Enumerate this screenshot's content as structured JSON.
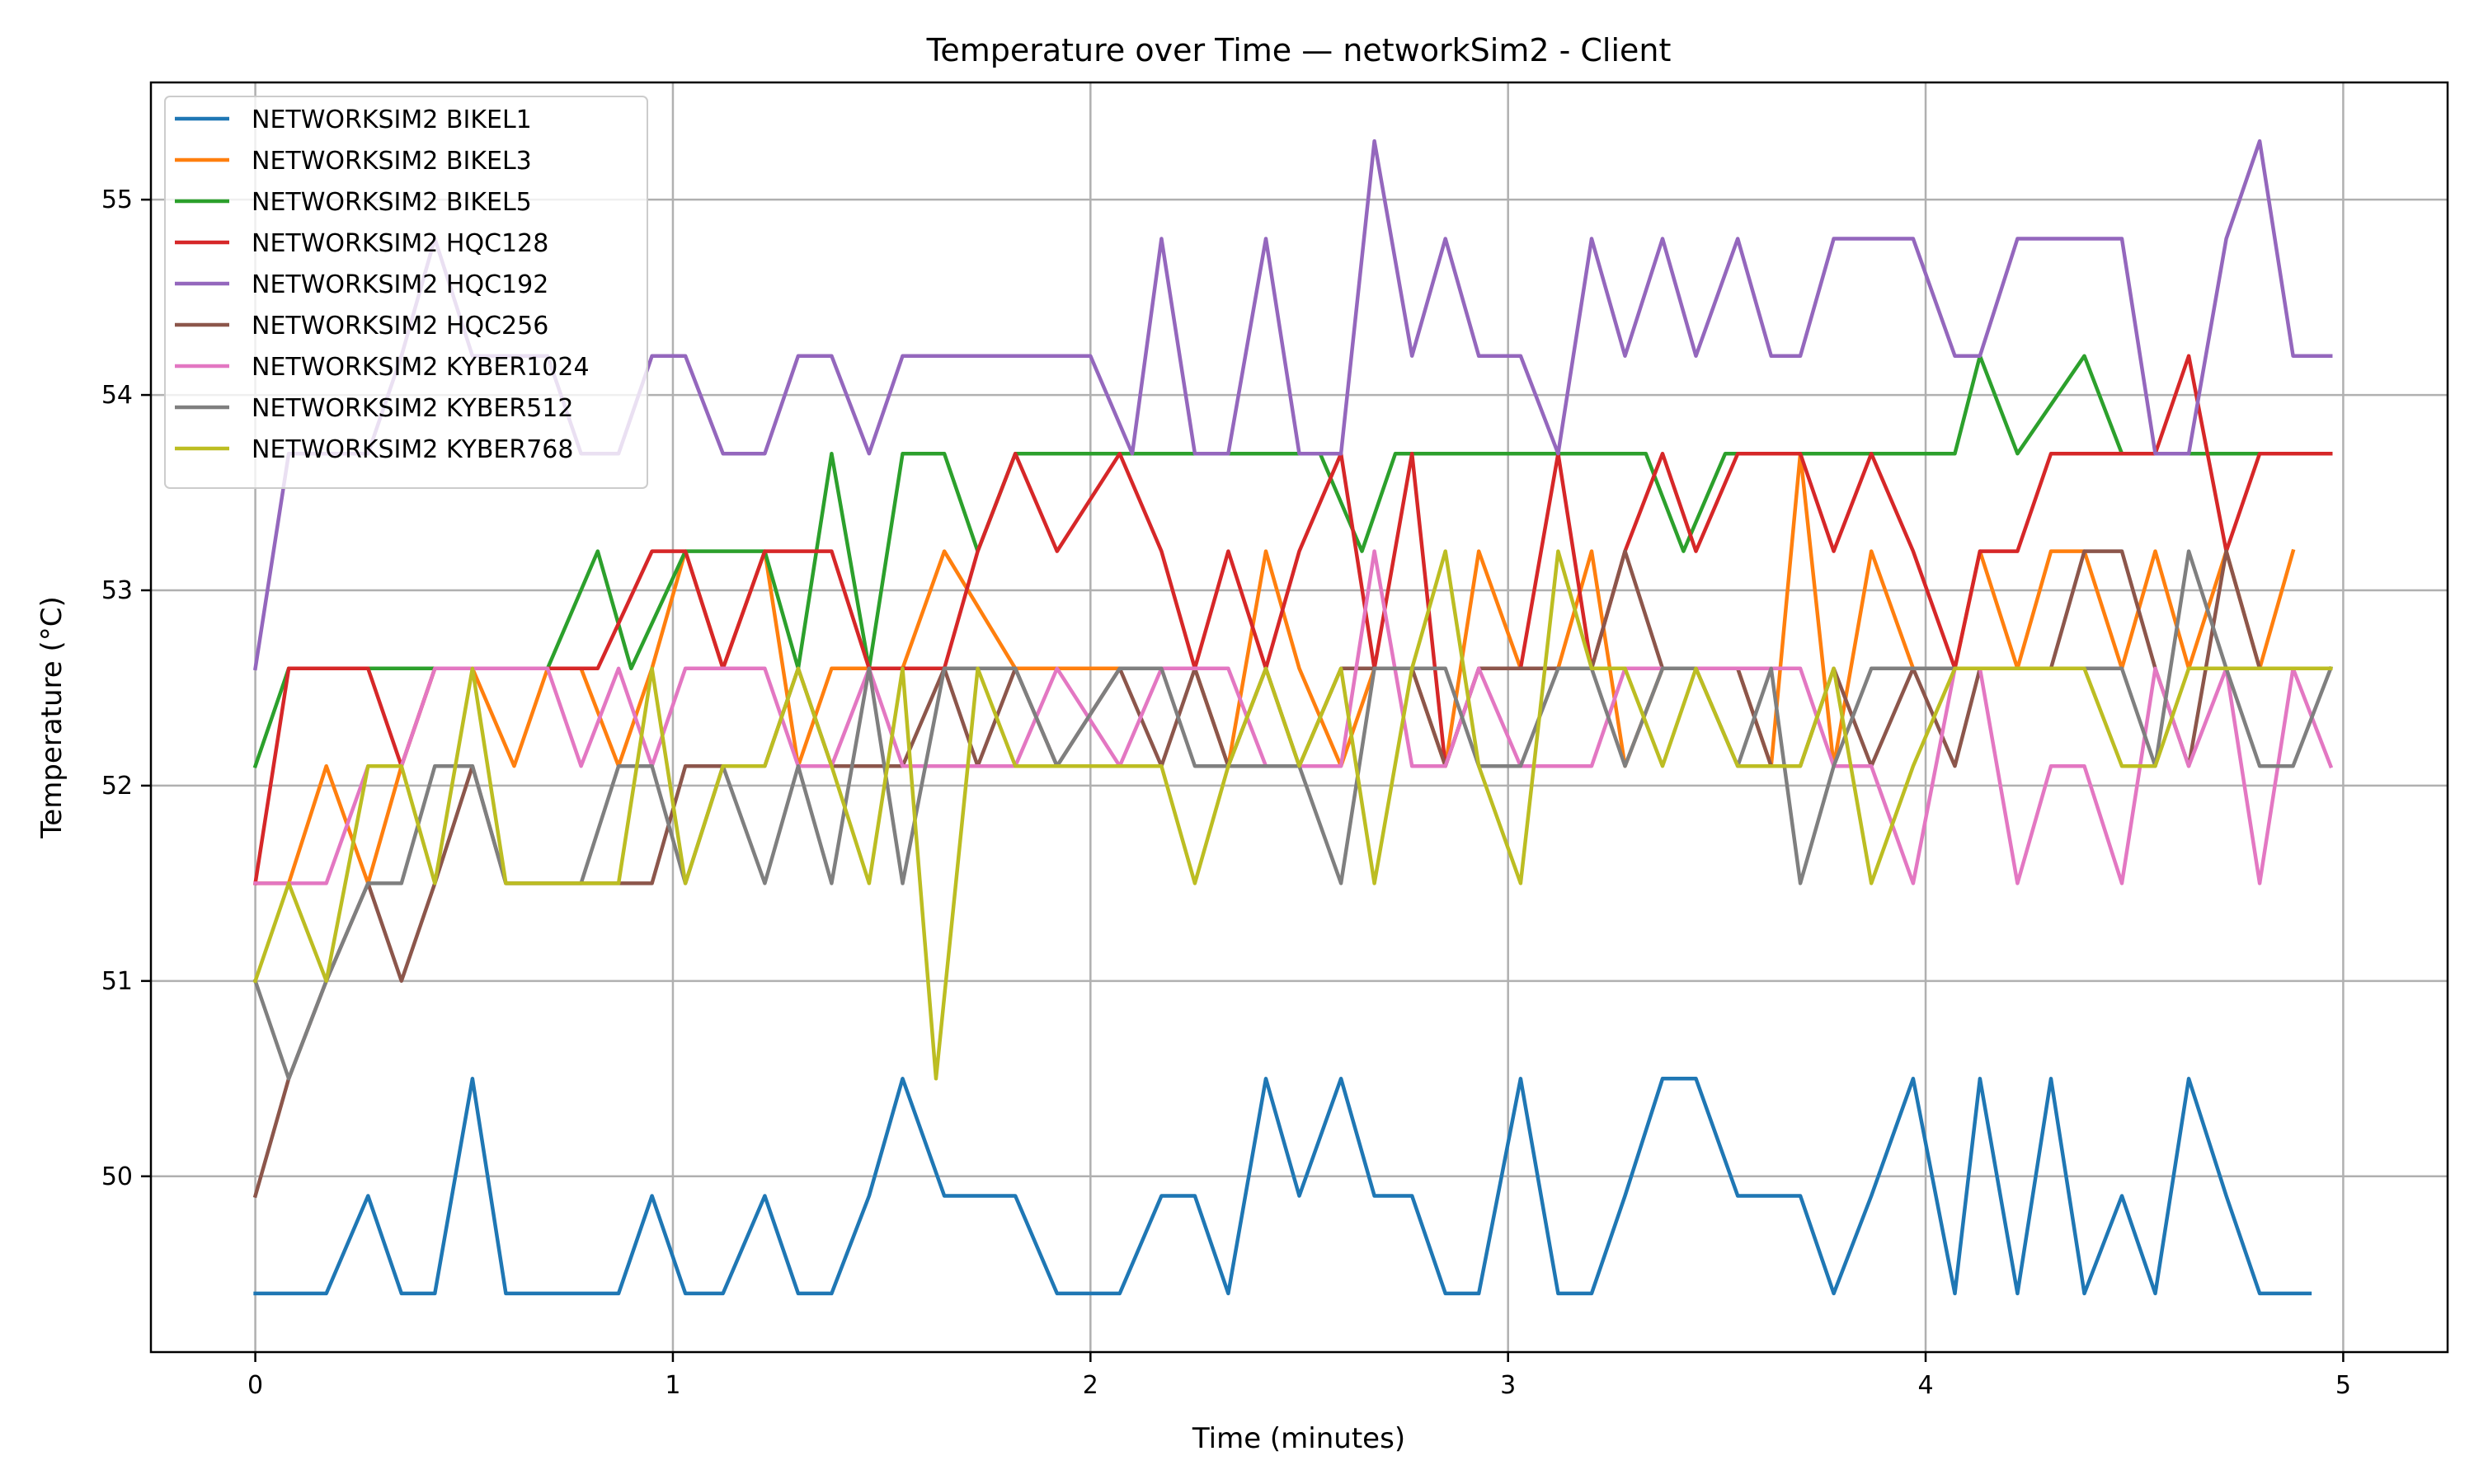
{
  "chart_data": {
    "type": "line",
    "title": "Temperature over Time — networkSim2 - Client",
    "xlabel": "Time (minutes)",
    "ylabel": "Temperature (°C)",
    "xlim": [
      -0.25,
      5.25
    ],
    "ylim": [
      49.1,
      55.6
    ],
    "xticks": [
      0,
      1,
      2,
      3,
      4,
      5
    ],
    "yticks": [
      50,
      51,
      52,
      53,
      54,
      55
    ],
    "grid": true,
    "legend_position": "top-left",
    "colors": [
      "#1f77b4",
      "#ff7f0e",
      "#2ca02c",
      "#d62728",
      "#9467bd",
      "#8c564b",
      "#e377c2",
      "#7f7f7f",
      "#bcbd22"
    ],
    "series": [
      {
        "name": "NETWORKSIM2 BIKEL1",
        "x": [
          0,
          0.17,
          0.27,
          0.35,
          0.43,
          0.52,
          0.6,
          0.87,
          0.95,
          1.03,
          1.12,
          1.22,
          1.3,
          1.38,
          1.47,
          1.55,
          1.65,
          1.82,
          1.92,
          2.07,
          2.17,
          2.25,
          2.33,
          2.42,
          2.5,
          2.6,
          2.68,
          2.77,
          2.85,
          2.93,
          3.03,
          3.12,
          3.2,
          3.28,
          3.37,
          3.45,
          3.55,
          3.7,
          3.78,
          3.87,
          3.97,
          4.07,
          4.13,
          4.22,
          4.3,
          4.38,
          4.47,
          4.55,
          4.63,
          4.72,
          4.8,
          4.92
        ],
        "y": [
          49.4,
          49.4,
          49.9,
          49.4,
          49.4,
          50.5,
          49.4,
          49.4,
          49.9,
          49.4,
          49.4,
          49.9,
          49.4,
          49.4,
          49.9,
          50.5,
          49.9,
          49.9,
          49.4,
          49.4,
          49.9,
          49.9,
          49.4,
          50.5,
          49.9,
          50.5,
          49.9,
          49.9,
          49.4,
          49.4,
          50.5,
          49.4,
          49.4,
          49.9,
          50.5,
          50.5,
          49.9,
          49.9,
          49.4,
          49.9,
          50.5,
          49.4,
          50.5,
          49.4,
          50.5,
          49.4,
          49.9,
          49.4,
          50.5,
          49.9,
          49.4,
          49.4
        ]
      },
      {
        "name": "NETWORKSIM2 BIKEL3",
        "x": [
          0,
          0.08,
          0.17,
          0.27,
          0.35,
          0.43,
          0.52,
          0.62,
          0.7,
          0.78,
          0.87,
          0.95,
          1.03,
          1.12,
          1.22,
          1.3,
          1.38,
          1.47,
          1.55,
          1.65,
          1.82,
          1.92,
          2.07,
          2.17,
          2.25,
          2.33,
          2.42,
          2.5,
          2.6,
          2.68,
          2.77,
          2.85,
          2.93,
          3.03,
          3.12,
          3.2,
          3.28,
          3.37,
          3.45,
          3.55,
          3.63,
          3.7,
          3.78,
          3.87,
          3.97,
          4.07,
          4.13,
          4.22,
          4.3,
          4.38,
          4.47,
          4.55,
          4.63,
          4.72,
          4.8,
          4.88
        ],
        "y": [
          51.5,
          51.5,
          52.1,
          51.5,
          52.1,
          52.6,
          52.6,
          52.1,
          52.6,
          52.6,
          52.1,
          52.6,
          53.2,
          52.6,
          53.2,
          52.1,
          52.6,
          52.6,
          52.6,
          53.2,
          52.6,
          52.6,
          52.6,
          52.6,
          52.6,
          52.1,
          53.2,
          52.6,
          52.1,
          52.6,
          52.6,
          52.1,
          53.2,
          52.6,
          52.6,
          53.2,
          52.1,
          52.6,
          52.6,
          52.6,
          52.1,
          53.7,
          52.1,
          53.2,
          52.6,
          52.6,
          53.2,
          52.6,
          53.2,
          53.2,
          52.6,
          53.2,
          52.6,
          53.2,
          52.6,
          53.2
        ]
      },
      {
        "name": "NETWORKSIM2 BIKEL5",
        "x": [
          0,
          0.08,
          0.17,
          0.43,
          0.52,
          0.6,
          0.7,
          0.82,
          0.9,
          1.03,
          1.12,
          1.22,
          1.3,
          1.38,
          1.47,
          1.55,
          1.65,
          1.73,
          1.82,
          1.92,
          2.07,
          2.55,
          2.65,
          2.73,
          2.83,
          3.33,
          3.42,
          3.52,
          3.87,
          4.07,
          4.13,
          4.22,
          4.38,
          4.47,
          4.55,
          4.72,
          4.97
        ],
        "y": [
          52.1,
          52.6,
          52.6,
          52.6,
          52.6,
          52.6,
          52.6,
          53.2,
          52.6,
          53.2,
          53.2,
          53.2,
          52.6,
          53.7,
          52.6,
          53.7,
          53.7,
          53.2,
          53.7,
          53.7,
          53.7,
          53.7,
          53.2,
          53.7,
          53.7,
          53.7,
          53.2,
          53.7,
          53.7,
          53.7,
          54.2,
          53.7,
          54.2,
          53.7,
          53.7,
          53.7,
          53.7
        ]
      },
      {
        "name": "NETWORKSIM2 HQC128",
        "x": [
          0,
          0.08,
          0.27,
          0.35,
          0.43,
          0.52,
          0.82,
          0.95,
          1.03,
          1.12,
          1.22,
          1.3,
          1.38,
          1.47,
          1.55,
          1.65,
          1.73,
          1.82,
          1.92,
          2.07,
          2.17,
          2.25,
          2.33,
          2.42,
          2.5,
          2.6,
          2.68,
          2.77,
          2.85,
          2.93,
          3.03,
          3.12,
          3.2,
          3.28,
          3.37,
          3.45,
          3.55,
          3.7,
          3.78,
          3.87,
          3.97,
          4.07,
          4.13,
          4.22,
          4.3,
          4.38,
          4.47,
          4.55,
          4.63,
          4.72,
          4.8,
          4.88,
          4.97
        ],
        "y": [
          51.5,
          52.6,
          52.6,
          52.1,
          52.6,
          52.6,
          52.6,
          53.2,
          53.2,
          52.6,
          53.2,
          53.2,
          53.2,
          52.6,
          52.6,
          52.6,
          53.2,
          53.7,
          53.2,
          53.7,
          53.2,
          52.6,
          53.2,
          52.6,
          53.2,
          53.7,
          52.6,
          53.7,
          52.1,
          52.6,
          52.6,
          53.7,
          52.6,
          53.2,
          53.7,
          53.2,
          53.7,
          53.7,
          53.2,
          53.7,
          53.2,
          52.6,
          53.2,
          53.2,
          53.7,
          53.7,
          53.7,
          53.7,
          54.2,
          53.2,
          53.7,
          53.7,
          53.7
        ]
      },
      {
        "name": "NETWORKSIM2 HQC192",
        "x": [
          0,
          0.08,
          0.17,
          0.27,
          0.35,
          0.43,
          0.52,
          0.6,
          0.7,
          0.78,
          0.87,
          0.95,
          1.03,
          1.12,
          1.22,
          1.3,
          1.38,
          1.47,
          1.55,
          1.65,
          2.0,
          2.1,
          2.17,
          2.25,
          2.33,
          2.42,
          2.5,
          2.6,
          2.68,
          2.77,
          2.85,
          2.93,
          3.03,
          3.12,
          3.2,
          3.28,
          3.37,
          3.45,
          3.55,
          3.63,
          3.7,
          3.78,
          3.87,
          3.97,
          4.07,
          4.13,
          4.22,
          4.3,
          4.38,
          4.47,
          4.55,
          4.63,
          4.72,
          4.8,
          4.88,
          4.97
        ],
        "y": [
          52.6,
          53.7,
          53.7,
          53.7,
          54.2,
          54.8,
          54.2,
          54.2,
          54.2,
          53.7,
          53.7,
          54.2,
          54.2,
          53.7,
          53.7,
          54.2,
          54.2,
          53.7,
          54.2,
          54.2,
          54.2,
          53.7,
          54.8,
          53.7,
          53.7,
          54.8,
          53.7,
          53.7,
          55.3,
          54.2,
          54.8,
          54.2,
          54.2,
          53.7,
          54.8,
          54.2,
          54.8,
          54.2,
          54.8,
          54.2,
          54.2,
          54.8,
          54.8,
          54.8,
          54.2,
          54.2,
          54.8,
          54.8,
          54.8,
          54.8,
          53.7,
          53.7,
          54.8,
          55.3,
          54.2,
          54.2
        ]
      },
      {
        "name": "NETWORKSIM2 HQC256",
        "x": [
          0,
          0.08,
          0.17,
          0.27,
          0.35,
          0.43,
          0.52,
          0.6,
          0.7,
          0.87,
          0.95,
          1.03,
          1.12,
          1.22,
          1.3,
          1.38,
          1.47,
          1.55,
          1.65,
          1.73,
          1.82,
          1.92,
          2.07,
          2.17,
          2.25,
          2.33,
          2.42,
          2.5,
          2.6,
          2.68,
          2.77,
          2.85,
          2.93,
          3.03,
          3.12,
          3.2,
          3.28,
          3.37,
          3.45,
          3.55,
          3.63,
          3.7,
          3.78,
          3.87,
          3.97,
          4.07,
          4.13,
          4.22,
          4.3,
          4.38,
          4.47,
          4.55,
          4.63,
          4.72,
          4.8,
          4.88,
          4.97
        ],
        "y": [
          49.9,
          50.5,
          51.0,
          51.5,
          51.0,
          51.5,
          52.1,
          51.5,
          51.5,
          51.5,
          51.5,
          52.1,
          52.1,
          52.1,
          52.6,
          52.1,
          52.1,
          52.1,
          52.6,
          52.1,
          52.6,
          52.1,
          52.6,
          52.1,
          52.6,
          52.1,
          52.6,
          52.1,
          52.6,
          52.6,
          52.6,
          52.1,
          52.6,
          52.6,
          52.6,
          52.6,
          53.2,
          52.6,
          52.6,
          52.6,
          52.1,
          52.1,
          52.6,
          52.1,
          52.6,
          52.1,
          52.6,
          52.6,
          52.6,
          53.2,
          53.2,
          52.6,
          52.1,
          53.2,
          52.6,
          52.6,
          52.6
        ]
      },
      {
        "name": "NETWORKSIM2 KYBER1024",
        "x": [
          0,
          0.08,
          0.17,
          0.27,
          0.35,
          0.43,
          0.52,
          0.7,
          0.78,
          0.87,
          0.95,
          1.03,
          1.12,
          1.22,
          1.3,
          1.38,
          1.47,
          1.55,
          1.65,
          1.73,
          1.82,
          1.92,
          2.07,
          2.17,
          2.25,
          2.33,
          2.42,
          2.5,
          2.6,
          2.68,
          2.77,
          2.85,
          2.93,
          3.03,
          3.12,
          3.2,
          3.28,
          3.37,
          3.45,
          3.55,
          3.63,
          3.7,
          3.78,
          3.87,
          3.97,
          4.07,
          4.13,
          4.22,
          4.3,
          4.38,
          4.47,
          4.55,
          4.63,
          4.72,
          4.8,
          4.88,
          4.97
        ],
        "y": [
          51.5,
          51.5,
          51.5,
          52.1,
          52.1,
          52.6,
          52.6,
          52.6,
          52.1,
          52.6,
          52.1,
          52.6,
          52.6,
          52.6,
          52.1,
          52.1,
          52.6,
          52.1,
          52.1,
          52.1,
          52.1,
          52.6,
          52.1,
          52.6,
          52.6,
          52.6,
          52.1,
          52.1,
          52.1,
          53.2,
          52.1,
          52.1,
          52.6,
          52.1,
          52.1,
          52.1,
          52.6,
          52.6,
          52.6,
          52.6,
          52.6,
          52.6,
          52.1,
          52.1,
          51.5,
          52.6,
          52.6,
          51.5,
          52.1,
          52.1,
          51.5,
          52.6,
          52.1,
          52.6,
          51.5,
          52.6,
          52.1
        ]
      },
      {
        "name": "NETWORKSIM2 KYBER512",
        "x": [
          0,
          0.08,
          0.17,
          0.27,
          0.35,
          0.43,
          0.52,
          0.6,
          0.78,
          0.87,
          0.95,
          1.03,
          1.12,
          1.22,
          1.3,
          1.38,
          1.47,
          1.55,
          1.65,
          1.73,
          1.82,
          1.92,
          2.07,
          2.17,
          2.25,
          2.33,
          2.42,
          2.5,
          2.6,
          2.68,
          2.77,
          2.85,
          2.93,
          3.03,
          3.12,
          3.2,
          3.28,
          3.37,
          3.45,
          3.55,
          3.63,
          3.7,
          3.78,
          3.87,
          3.97,
          4.07,
          4.13,
          4.22,
          4.3,
          4.38,
          4.47,
          4.55,
          4.63,
          4.72,
          4.8,
          4.88,
          4.97
        ],
        "y": [
          51.0,
          50.5,
          51.0,
          51.5,
          51.5,
          52.1,
          52.1,
          51.5,
          51.5,
          52.1,
          52.1,
          51.5,
          52.1,
          51.5,
          52.1,
          51.5,
          52.6,
          51.5,
          52.6,
          52.6,
          52.6,
          52.1,
          52.6,
          52.6,
          52.1,
          52.1,
          52.1,
          52.1,
          51.5,
          52.6,
          52.6,
          52.6,
          52.1,
          52.1,
          52.6,
          52.6,
          52.1,
          52.6,
          52.6,
          52.1,
          52.6,
          51.5,
          52.1,
          52.6,
          52.6,
          52.6,
          52.6,
          52.6,
          52.6,
          52.6,
          52.6,
          52.1,
          53.2,
          52.6,
          52.1,
          52.1,
          52.6
        ]
      },
      {
        "name": "NETWORKSIM2 KYBER768",
        "x": [
          0,
          0.08,
          0.17,
          0.27,
          0.35,
          0.43,
          0.52,
          0.6,
          0.7,
          0.87,
          0.95,
          1.03,
          1.12,
          1.22,
          1.3,
          1.38,
          1.47,
          1.55,
          1.63,
          1.73,
          1.82,
          1.92,
          2.07,
          2.17,
          2.25,
          2.33,
          2.42,
          2.5,
          2.6,
          2.68,
          2.77,
          2.85,
          2.93,
          3.03,
          3.12,
          3.2,
          3.28,
          3.37,
          3.45,
          3.55,
          3.63,
          3.7,
          3.78,
          3.87,
          3.97,
          4.07,
          4.13,
          4.22,
          4.3,
          4.38,
          4.47,
          4.55,
          4.63,
          4.72,
          4.8,
          4.88,
          4.97
        ],
        "y": [
          51.0,
          51.5,
          51.0,
          52.1,
          52.1,
          51.5,
          52.6,
          51.5,
          51.5,
          51.5,
          52.6,
          51.5,
          52.1,
          52.1,
          52.6,
          52.1,
          51.5,
          52.6,
          50.5,
          52.6,
          52.1,
          52.1,
          52.1,
          52.1,
          51.5,
          52.1,
          52.6,
          52.1,
          52.6,
          51.5,
          52.6,
          53.2,
          52.1,
          51.5,
          53.2,
          52.6,
          52.6,
          52.1,
          52.6,
          52.1,
          52.1,
          52.1,
          52.6,
          51.5,
          52.1,
          52.6,
          52.6,
          52.6,
          52.6,
          52.6,
          52.1,
          52.1,
          52.6,
          52.6,
          52.6,
          52.6,
          52.6
        ]
      }
    ]
  }
}
